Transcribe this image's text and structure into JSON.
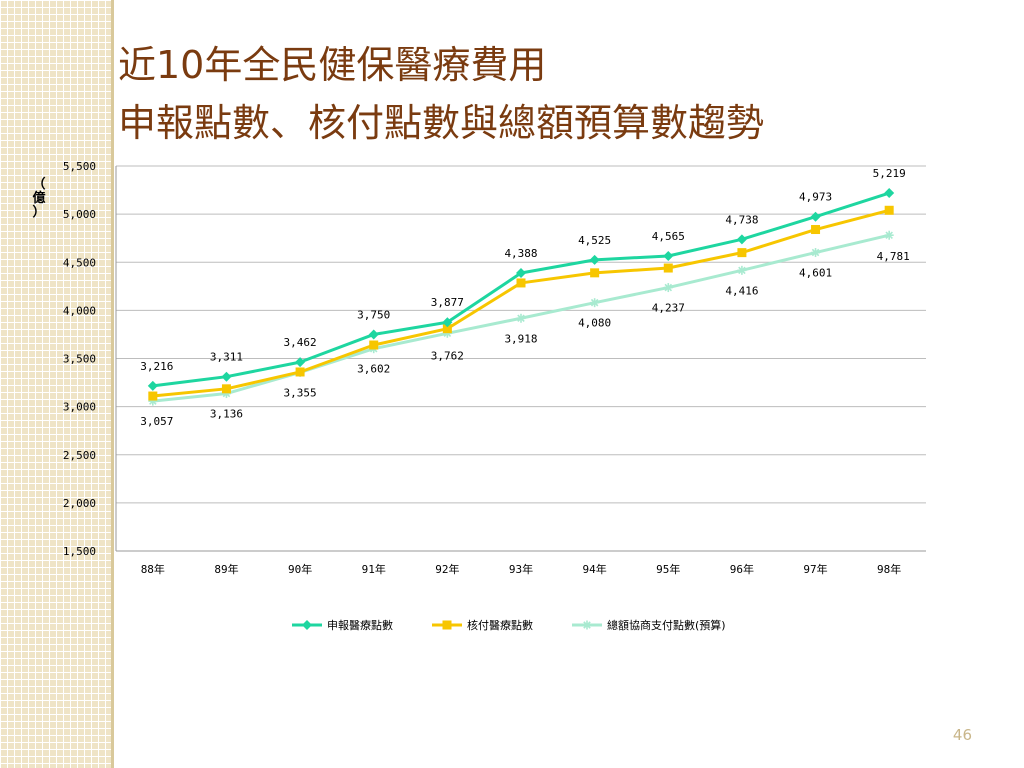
{
  "slide": {
    "title_line1": "近10年全民健保醫療費用",
    "title_line2": "申報點數、核付點數與總額預算數趨勢",
    "page_number": "46"
  },
  "chart_data": {
    "type": "line",
    "title": "",
    "xlabel": "",
    "ylabel": "（億）",
    "ylim": [
      1500,
      5500
    ],
    "yticks": [
      1500,
      2000,
      2500,
      3000,
      3500,
      4000,
      4500,
      5000,
      5500
    ],
    "ytick_labels": [
      "1,500",
      "2,000",
      "2,500",
      "3,000",
      "3,500",
      "4,000",
      "4,500",
      "5,000",
      "5,500"
    ],
    "grid": true,
    "legend_position": "bottom",
    "categories": [
      "88年",
      "89年",
      "90年",
      "91年",
      "92年",
      "93年",
      "94年",
      "95年",
      "96年",
      "97年",
      "98年"
    ],
    "series": [
      {
        "name": "申報醫療點數",
        "color": "#1ed6a0",
        "marker": "diamond",
        "values": [
          3216,
          3311,
          3462,
          3750,
          3877,
          4388,
          4525,
          4565,
          4738,
          4973,
          5219
        ],
        "labels": [
          "3,216",
          "3,311",
          "3,462",
          "3,750",
          "3,877",
          "4,388",
          "4,525",
          "4,565",
          "4,738",
          "4,973",
          "5,219"
        ]
      },
      {
        "name": "核付醫療點數",
        "color": "#f7c600",
        "marker": "square",
        "values": [
          3110,
          3185,
          3360,
          3640,
          3810,
          4285,
          4390,
          4440,
          4600,
          4840,
          5040
        ],
        "labels": []
      },
      {
        "name": "總額協商支付點數(預算)",
        "color": "#a8ead0",
        "marker": "star",
        "values": [
          3057,
          3136,
          3355,
          3602,
          3762,
          3918,
          4080,
          4237,
          4416,
          4601,
          4781
        ],
        "labels": [
          "3,057",
          "3,136",
          "3,355",
          "3,602",
          "3,762",
          "3,918",
          "4,080",
          "4,237",
          "4,416",
          "4,601",
          "4,781"
        ]
      }
    ]
  }
}
